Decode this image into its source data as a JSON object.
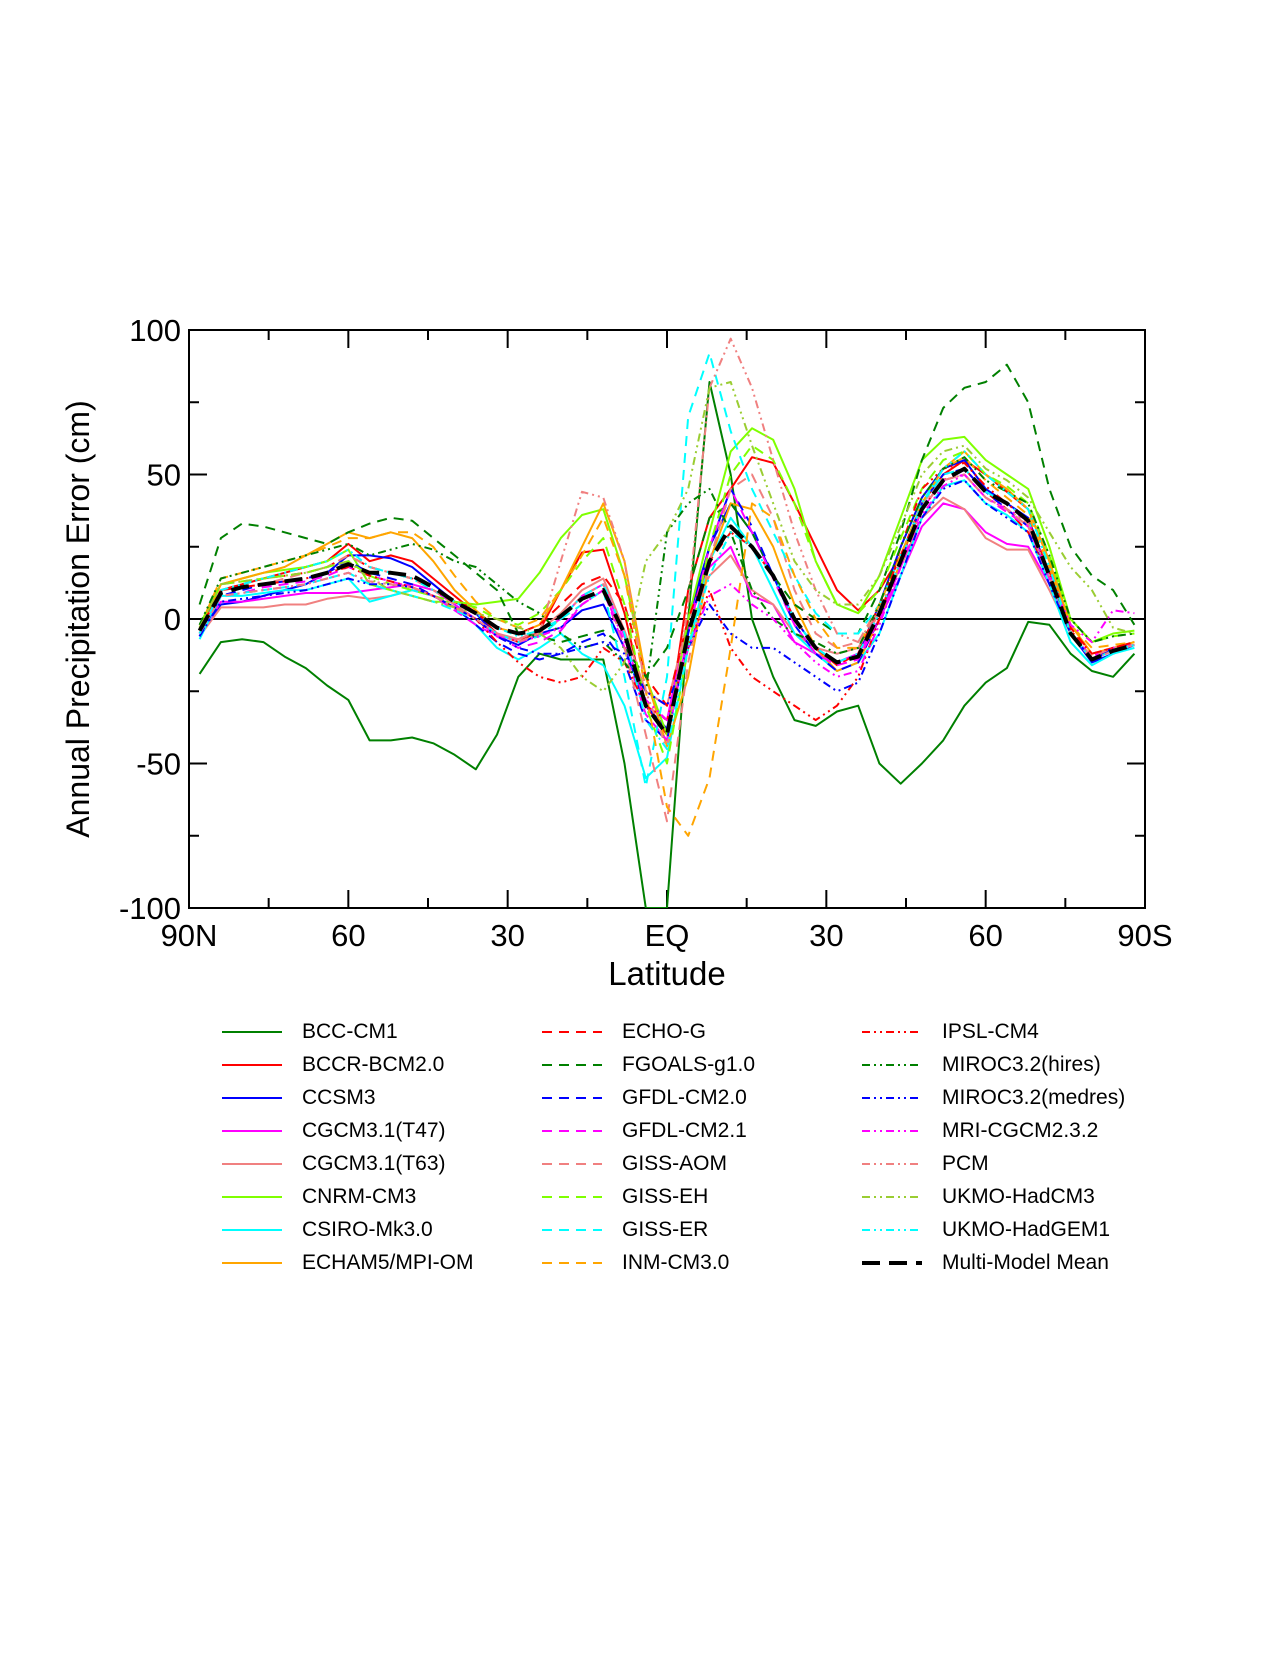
{
  "chart_data": {
    "type": "line",
    "title": "",
    "xlabel": "Latitude",
    "ylabel": "Annual Precipitation Error (cm)",
    "ylim": [
      -100,
      100
    ],
    "xlim": [
      -90,
      90
    ],
    "x_direction": "90N on left to 90S on right",
    "yticks": [
      -100,
      -50,
      0,
      50,
      100
    ],
    "ytick_labels": [
      "-100",
      "-50",
      "0",
      "50",
      "100"
    ],
    "xticks": [
      -90,
      -60,
      -30,
      0,
      30,
      60,
      90
    ],
    "xtick_labels": [
      "90N",
      "60",
      "30",
      "EQ",
      "30",
      "60",
      "90S"
    ],
    "grid": false,
    "zero_line": true,
    "legend_position": "below",
    "x": [
      -88,
      -84,
      -80,
      -76,
      -72,
      -68,
      -64,
      -60,
      -56,
      -52,
      -48,
      -44,
      -40,
      -36,
      -32,
      -28,
      -24,
      -20,
      -16,
      -12,
      -8,
      -4,
      0,
      4,
      8,
      12,
      16,
      20,
      24,
      28,
      32,
      36,
      40,
      44,
      48,
      52,
      56,
      60,
      64,
      68,
      72,
      76,
      80,
      84,
      88
    ],
    "series": [
      {
        "name": "BCC-CM1",
        "color": "#008000",
        "dash": "solid",
        "values": [
          -19,
          -8,
          -7,
          -8,
          -13,
          -17,
          -23,
          -28,
          -42,
          -42,
          -41,
          -43,
          -47,
          -52,
          -40,
          -20,
          -12,
          -14,
          -14,
          -14,
          -50,
          -100,
          -100,
          0,
          82,
          50,
          0,
          -20,
          -35,
          -37,
          -32,
          -30,
          -50,
          -57,
          -50,
          -42,
          -30,
          -22,
          -17,
          -1,
          -2,
          -12,
          -18,
          -20,
          -12
        ]
      },
      {
        "name": "BCCR-BCM2.0",
        "color": "#ff0000",
        "dash": "solid",
        "values": [
          -5,
          10,
          12,
          14,
          16,
          18,
          20,
          26,
          20,
          22,
          20,
          14,
          8,
          2,
          -5,
          -8,
          -4,
          10,
          23,
          24,
          2,
          -30,
          -40,
          10,
          35,
          45,
          56,
          54,
          40,
          25,
          10,
          3,
          10,
          22,
          40,
          50,
          55,
          50,
          44,
          38,
          20,
          -5,
          -14,
          -10,
          -9
        ]
      },
      {
        "name": "CCSM3",
        "color": "#0000ff",
        "dash": "solid",
        "values": [
          -6,
          5,
          6,
          8,
          10,
          12,
          16,
          22,
          22,
          21,
          18,
          12,
          6,
          2,
          -6,
          -9,
          -5,
          -3,
          3,
          5,
          -10,
          -30,
          -38,
          0,
          25,
          40,
          30,
          15,
          0,
          -10,
          -15,
          -12,
          5,
          25,
          42,
          52,
          55,
          45,
          40,
          35,
          15,
          -5,
          -15,
          -12,
          -9
        ]
      },
      {
        "name": "CGCM3.1(T47)",
        "color": "#ff00ff",
        "dash": "solid",
        "values": [
          -6,
          6,
          6,
          7,
          8,
          9,
          9,
          9,
          10,
          11,
          12,
          10,
          5,
          0,
          -6,
          -7,
          -4,
          0,
          8,
          12,
          -6,
          -30,
          -35,
          0,
          18,
          25,
          8,
          5,
          -8,
          -12,
          -15,
          -12,
          0,
          15,
          32,
          40,
          38,
          30,
          26,
          25,
          12,
          -5,
          -14,
          -10,
          -9
        ]
      },
      {
        "name": "CGCM3.1(T63)",
        "color": "#f08080",
        "dash": "solid",
        "values": [
          -6,
          4,
          4,
          4,
          5,
          5,
          7,
          8,
          7,
          8,
          10,
          8,
          4,
          0,
          -5,
          -7,
          -4,
          2,
          10,
          14,
          -4,
          -25,
          -30,
          0,
          15,
          22,
          10,
          5,
          -5,
          -10,
          -12,
          -10,
          2,
          18,
          35,
          42,
          38,
          28,
          24,
          24,
          10,
          -5,
          -14,
          -10,
          -9
        ]
      },
      {
        "name": "CNRM-CM3",
        "color": "#7fff00",
        "dash": "solid",
        "values": [
          -2,
          12,
          14,
          16,
          17,
          18,
          20,
          24,
          12,
          10,
          8,
          6,
          6,
          5,
          6,
          7,
          16,
          28,
          36,
          38,
          15,
          -20,
          -40,
          0,
          30,
          58,
          66,
          62,
          45,
          20,
          5,
          2,
          15,
          35,
          55,
          62,
          63,
          55,
          50,
          45,
          25,
          0,
          -8,
          -5,
          -4
        ]
      },
      {
        "name": "CSIRO-Mk3.0",
        "color": "#00ffff",
        "dash": "solid",
        "values": [
          -7,
          8,
          8,
          9,
          10,
          10,
          12,
          14,
          6,
          8,
          10,
          8,
          4,
          -2,
          -10,
          -14,
          -10,
          -5,
          -12,
          -16,
          -30,
          -55,
          -48,
          -10,
          20,
          35,
          25,
          10,
          -5,
          -12,
          -18,
          -15,
          -5,
          15,
          35,
          46,
          48,
          40,
          36,
          30,
          12,
          -8,
          -16,
          -12,
          -10
        ]
      },
      {
        "name": "ECHAM5/MPI-OM",
        "color": "#ffa500",
        "dash": "solid",
        "values": [
          -4,
          12,
          14,
          16,
          18,
          22,
          26,
          30,
          28,
          30,
          28,
          20,
          10,
          3,
          -3,
          -5,
          -2,
          10,
          25,
          40,
          20,
          -20,
          -44,
          -20,
          20,
          40,
          38,
          25,
          5,
          -10,
          -18,
          -15,
          0,
          20,
          40,
          52,
          58,
          50,
          45,
          38,
          20,
          -2,
          -12,
          -10,
          -8
        ]
      },
      {
        "name": "ECHO-G",
        "color": "#ff0000",
        "dash": "dashed",
        "values": [
          -4,
          10,
          12,
          14,
          15,
          16,
          18,
          22,
          18,
          16,
          14,
          10,
          6,
          2,
          -3,
          -5,
          -2,
          5,
          12,
          15,
          5,
          -20,
          -30,
          0,
          20,
          30,
          25,
          15,
          0,
          -10,
          -16,
          -12,
          5,
          22,
          38,
          48,
          52,
          44,
          38,
          30,
          15,
          -3,
          -12,
          -10,
          -8
        ]
      },
      {
        "name": "FGOALS-g1.0",
        "color": "#008000",
        "dash": "dashed",
        "values": [
          5,
          28,
          33,
          32,
          30,
          28,
          26,
          30,
          33,
          35,
          34,
          28,
          22,
          16,
          10,
          -5,
          -6,
          -8,
          -6,
          -4,
          -10,
          -20,
          -10,
          10,
          35,
          40,
          30,
          15,
          5,
          0,
          -5,
          -5,
          10,
          30,
          55,
          73,
          80,
          82,
          88,
          75,
          45,
          25,
          15,
          10,
          -2
        ]
      },
      {
        "name": "GFDL-CM2.0",
        "color": "#0000ff",
        "dash": "dashed",
        "values": [
          -6,
          8,
          10,
          12,
          13,
          14,
          16,
          20,
          16,
          14,
          12,
          8,
          4,
          -2,
          -8,
          -12,
          -14,
          -12,
          -8,
          -5,
          -15,
          -35,
          -42,
          -5,
          25,
          45,
          32,
          15,
          -2,
          -12,
          -18,
          -15,
          0,
          20,
          40,
          50,
          52,
          44,
          38,
          32,
          15,
          -5,
          -14,
          -10,
          -9
        ]
      },
      {
        "name": "GFDL-CM2.1",
        "color": "#ff00ff",
        "dash": "dashed",
        "values": [
          -5,
          8,
          9,
          11,
          12,
          13,
          15,
          18,
          15,
          13,
          11,
          8,
          3,
          -2,
          -6,
          -10,
          -8,
          -4,
          5,
          10,
          -10,
          -33,
          -42,
          -5,
          25,
          45,
          30,
          14,
          -2,
          -12,
          -16,
          -14,
          0,
          18,
          38,
          48,
          50,
          42,
          37,
          32,
          14,
          -5,
          -13,
          -10,
          -9
        ]
      },
      {
        "name": "GISS-AOM",
        "color": "#f08080",
        "dash": "dashed",
        "values": [
          -5,
          10,
          11,
          12,
          14,
          16,
          18,
          22,
          18,
          16,
          14,
          10,
          5,
          0,
          -5,
          -8,
          -5,
          0,
          8,
          12,
          -10,
          -40,
          -70,
          -15,
          20,
          45,
          50,
          35,
          10,
          -5,
          -10,
          -8,
          5,
          22,
          40,
          48,
          50,
          42,
          38,
          32,
          15,
          -5,
          -13,
          -10,
          -9
        ]
      },
      {
        "name": "GISS-EH",
        "color": "#7fff00",
        "dash": "dashed",
        "values": [
          -3,
          12,
          13,
          14,
          15,
          16,
          18,
          20,
          15,
          12,
          10,
          8,
          6,
          4,
          0,
          -2,
          2,
          10,
          20,
          28,
          5,
          -30,
          -50,
          -10,
          25,
          50,
          60,
          55,
          40,
          20,
          5,
          2,
          10,
          28,
          45,
          55,
          58,
          50,
          46,
          40,
          22,
          0,
          -8,
          -6,
          -5
        ]
      },
      {
        "name": "GISS-ER",
        "color": "#00ffff",
        "dash": "dashed",
        "values": [
          -5,
          8,
          9,
          10,
          11,
          12,
          14,
          16,
          12,
          10,
          8,
          6,
          3,
          0,
          -5,
          -8,
          -6,
          0,
          5,
          10,
          -20,
          -58,
          -20,
          70,
          92,
          65,
          45,
          30,
          15,
          2,
          -5,
          -5,
          5,
          22,
          40,
          50,
          52,
          44,
          40,
          34,
          15,
          -5,
          -14,
          -11,
          -9
        ]
      },
      {
        "name": "INM-CM3.0",
        "color": "#ffa500",
        "dash": "dashed",
        "values": [
          -3,
          14,
          16,
          18,
          20,
          22,
          25,
          28,
          28,
          30,
          30,
          25,
          15,
          6,
          0,
          -3,
          0,
          10,
          22,
          35,
          15,
          -25,
          -65,
          -75,
          -55,
          -10,
          40,
          35,
          15,
          0,
          -10,
          -10,
          5,
          22,
          40,
          52,
          56,
          48,
          42,
          36,
          18,
          -2,
          -10,
          -9,
          -8
        ]
      },
      {
        "name": "IPSL-CM4",
        "color": "#ff0000",
        "dash": "dashdotdot",
        "values": [
          -4,
          10,
          11,
          12,
          13,
          14,
          16,
          18,
          15,
          13,
          11,
          8,
          4,
          0,
          -8,
          -15,
          -20,
          -22,
          -20,
          -10,
          -15,
          -30,
          -35,
          -10,
          10,
          -10,
          -20,
          -25,
          -30,
          -35,
          -30,
          -20,
          0,
          25,
          45,
          52,
          54,
          46,
          40,
          34,
          16,
          -4,
          -12,
          -10,
          -8
        ]
      },
      {
        "name": "MIROC3.2(hires)",
        "color": "#008000",
        "dash": "dashdotdot",
        "values": [
          -2,
          14,
          16,
          18,
          20,
          22,
          24,
          26,
          22,
          24,
          26,
          24,
          20,
          18,
          12,
          6,
          2,
          -5,
          -10,
          -8,
          -15,
          -25,
          30,
          40,
          45,
          30,
          10,
          0,
          -5,
          -8,
          -12,
          -10,
          5,
          25,
          42,
          52,
          56,
          48,
          44,
          40,
          22,
          0,
          -8,
          -6,
          -5
        ]
      },
      {
        "name": "MIROC3.2(medres)",
        "color": "#0000ff",
        "dash": "dashdotdot",
        "values": [
          -6,
          6,
          7,
          8,
          9,
          10,
          12,
          14,
          12,
          12,
          11,
          8,
          4,
          0,
          -6,
          -10,
          -12,
          -12,
          -10,
          -8,
          -12,
          -25,
          -30,
          -10,
          5,
          -5,
          -10,
          -10,
          -15,
          -20,
          -25,
          -22,
          -5,
          15,
          35,
          45,
          48,
          40,
          35,
          30,
          12,
          -5,
          -14,
          -11,
          -9
        ]
      },
      {
        "name": "MRI-CGCM2.3.2",
        "color": "#ff00ff",
        "dash": "dashdotdot",
        "values": [
          -5,
          8,
          9,
          10,
          11,
          12,
          14,
          16,
          13,
          12,
          11,
          8,
          4,
          0,
          -5,
          -8,
          -6,
          -3,
          5,
          10,
          -8,
          -28,
          -35,
          -10,
          8,
          12,
          5,
          0,
          -8,
          -15,
          -20,
          -18,
          -2,
          18,
          36,
          46,
          50,
          42,
          38,
          34,
          15,
          -2,
          -8,
          3,
          2
        ]
      },
      {
        "name": "PCM",
        "color": "#f08080",
        "dash": "dashdotdot",
        "values": [
          -5,
          8,
          9,
          10,
          11,
          12,
          14,
          16,
          13,
          12,
          11,
          8,
          4,
          0,
          -5,
          -8,
          -5,
          20,
          44,
          42,
          20,
          -25,
          -45,
          5,
          80,
          97,
          80,
          55,
          30,
          10,
          -5,
          -8,
          3,
          20,
          38,
          48,
          50,
          42,
          38,
          33,
          15,
          -5,
          -14,
          -11,
          -9
        ]
      },
      {
        "name": "UKMO-HadCM3",
        "color": "#9acd32",
        "dash": "dashdotdot",
        "values": [
          -3,
          12,
          13,
          14,
          15,
          16,
          18,
          20,
          14,
          10,
          8,
          6,
          4,
          2,
          0,
          -3,
          -5,
          -10,
          -20,
          -25,
          -15,
          20,
          30,
          45,
          80,
          82,
          60,
          40,
          20,
          10,
          5,
          5,
          15,
          32,
          50,
          58,
          60,
          52,
          48,
          42,
          30,
          18,
          10,
          -3,
          -5
        ]
      },
      {
        "name": "UKMO-HadGEM1",
        "color": "#00ffff",
        "dash": "dashdotdot",
        "values": [
          -5,
          10,
          12,
          14,
          16,
          18,
          20,
          24,
          18,
          16,
          14,
          10,
          6,
          2,
          -3,
          -6,
          -4,
          0,
          8,
          12,
          -5,
          -35,
          -45,
          -10,
          15,
          30,
          25,
          15,
          0,
          -10,
          -15,
          -12,
          2,
          20,
          40,
          52,
          58,
          50,
          44,
          38,
          18,
          -5,
          -14,
          -11,
          -9
        ]
      },
      {
        "name": "Multi-Model Mean",
        "color": "#000000",
        "dash": "thickdash",
        "values": [
          -4,
          9,
          11,
          12,
          13,
          14,
          16,
          19,
          16,
          16,
          15,
          11,
          6,
          2,
          -3,
          -5,
          -4,
          1,
          7,
          10,
          -5,
          -30,
          -40,
          -5,
          20,
          32,
          25,
          15,
          0,
          -10,
          -15,
          -13,
          2,
          20,
          38,
          48,
          52,
          44,
          40,
          34,
          15,
          -5,
          -14,
          -11,
          -9
        ]
      }
    ]
  }
}
